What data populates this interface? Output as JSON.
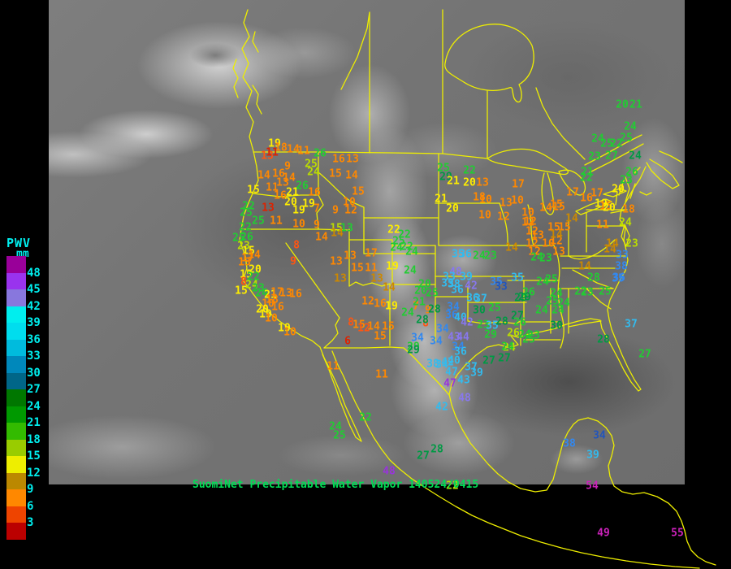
{
  "caption": {
    "text": "SuomiNet Precipitable Water Vapor 140524/0415",
    "color": "#00DD55"
  },
  "legend": {
    "title": "PWV",
    "units": "mm",
    "text_color": "#00EEEE",
    "tick_labels": [
      "48",
      "45",
      "42",
      "39",
      "36",
      "33",
      "30",
      "27",
      "24",
      "21",
      "18",
      "15",
      "12",
      "9",
      "6",
      "3"
    ],
    "block_colors": [
      "#990099",
      "#9933EE",
      "#8877DD",
      "#00EEEE",
      "#00DDEE",
      "#00BBDD",
      "#0088BB",
      "#006688",
      "#007700",
      "#009900",
      "#33BB00",
      "#99CC00",
      "#EEEE00",
      "#BB8800",
      "#FF8800",
      "#EE4400",
      "#BB0000"
    ]
  },
  "map": {
    "outline_color": "#EEEE00",
    "space_color": "#000000"
  },
  "palette": {
    "r": "#DD2200",
    "or": "#FF5511",
    "o": "#FF8800",
    "go": "#CC8800",
    "y": "#FFEE00",
    "yg": "#BBDD00",
    "g": "#22CC33",
    "dg": "#009944",
    "b": "#3388EE",
    "db": "#2255BB",
    "c": "#33BBEE",
    "lv": "#8877EE",
    "pu": "#9933DD",
    "mg": "#CC22BB"
  },
  "stations": [
    [
      "19",
      338,
      177,
      "y"
    ],
    [
      "18",
      346,
      182,
      "o"
    ],
    [
      "14",
      361,
      184,
      "o"
    ],
    [
      "11",
      374,
      186,
      "o"
    ],
    [
      "26",
      394,
      189,
      "g"
    ],
    [
      "16",
      417,
      196,
      "o"
    ],
    [
      "13",
      434,
      196,
      "o"
    ],
    [
      "13",
      329,
      192,
      "or"
    ],
    [
      "11",
      335,
      188,
      "r"
    ],
    [
      "9",
      354,
      205,
      "o"
    ],
    [
      "25",
      383,
      202,
      "yg"
    ],
    [
      "24",
      386,
      212,
      "yg"
    ],
    [
      "15",
      413,
      214,
      "o"
    ],
    [
      "14",
      433,
      216,
      "o"
    ],
    [
      "14",
      325,
      216,
      "o"
    ],
    [
      "16",
      343,
      214,
      "o"
    ],
    [
      "14",
      356,
      219,
      "o"
    ],
    [
      "13",
      348,
      225,
      "o"
    ],
    [
      "11",
      335,
      231,
      "o"
    ],
    [
      "26",
      372,
      229,
      "g"
    ],
    [
      "21",
      360,
      237,
      "y"
    ],
    [
      "16",
      387,
      237,
      "o"
    ],
    [
      "15",
      312,
      234,
      "y"
    ],
    [
      "16",
      345,
      241,
      "o"
    ],
    [
      "15",
      441,
      236,
      "o"
    ],
    [
      "20",
      358,
      249,
      "y"
    ],
    [
      "19",
      380,
      251,
      "y"
    ],
    [
      "19",
      368,
      259,
      "y"
    ],
    [
      "7",
      390,
      257,
      "o"
    ],
    [
      "9",
      413,
      259,
      "o"
    ],
    [
      "10",
      430,
      249,
      "o"
    ],
    [
      "12",
      432,
      259,
      "o"
    ],
    [
      "13",
      330,
      256,
      "r"
    ],
    [
      "22",
      306,
      254,
      "g"
    ],
    [
      "25",
      303,
      262,
      "g"
    ],
    [
      "25",
      318,
      272,
      "g"
    ],
    [
      "22",
      302,
      280,
      "g"
    ],
    [
      "11",
      340,
      272,
      "o"
    ],
    [
      "10",
      368,
      276,
      "o"
    ],
    [
      "9",
      390,
      277,
      "o"
    ],
    [
      "15",
      414,
      281,
      "yg"
    ],
    [
      "13",
      427,
      281,
      "g"
    ],
    [
      "25",
      546,
      207,
      "g"
    ],
    [
      "29",
      549,
      218,
      "dg"
    ],
    [
      "22",
      578,
      210,
      "g"
    ],
    [
      "21",
      558,
      223,
      "y"
    ],
    [
      "20",
      578,
      225,
      "y"
    ],
    [
      "13",
      594,
      225,
      "o"
    ],
    [
      "17",
      638,
      227,
      "o"
    ],
    [
      "21",
      543,
      245,
      "y"
    ],
    [
      "18",
      590,
      243,
      "o"
    ],
    [
      "10",
      598,
      246,
      "o"
    ],
    [
      "13",
      623,
      250,
      "o"
    ],
    [
      "10",
      637,
      247,
      "o"
    ],
    [
      "20",
      557,
      257,
      "y"
    ],
    [
      "10",
      597,
      265,
      "o"
    ],
    [
      "12",
      620,
      267,
      "o"
    ],
    [
      "10",
      650,
      262,
      "o"
    ],
    [
      "14",
      672,
      256,
      "o"
    ],
    [
      "15",
      688,
      255,
      "o"
    ],
    [
      "12",
      653,
      273,
      "o"
    ],
    [
      "12",
      655,
      285,
      "o"
    ],
    [
      "13",
      662,
      290,
      "o"
    ],
    [
      "15",
      682,
      280,
      "o"
    ],
    [
      "15",
      695,
      280,
      "o"
    ],
    [
      "12",
      655,
      300,
      "o"
    ],
    [
      "10",
      675,
      300,
      "o"
    ],
    [
      "12",
      685,
      297,
      "o"
    ],
    [
      "14",
      630,
      305,
      "go"
    ],
    [
      "12",
      658,
      310,
      "o"
    ],
    [
      "13",
      688,
      310,
      "o"
    ],
    [
      "24",
      590,
      315,
      "g"
    ],
    [
      "23",
      604,
      315,
      "g"
    ],
    [
      "25",
      294,
      293,
      "g"
    ],
    [
      "26",
      304,
      292,
      "g"
    ],
    [
      "23",
      300,
      303,
      "yg"
    ],
    [
      "15",
      306,
      309,
      "y"
    ],
    [
      "14",
      313,
      314,
      "o"
    ],
    [
      "17",
      305,
      318,
      "o"
    ],
    [
      "13",
      301,
      323,
      "o"
    ],
    [
      "8",
      365,
      302,
      "or"
    ],
    [
      "9",
      361,
      322,
      "or"
    ],
    [
      "14",
      396,
      292,
      "o"
    ],
    [
      "14",
      415,
      287,
      "go"
    ],
    [
      "20",
      314,
      332,
      "y"
    ],
    [
      "15",
      303,
      338,
      "y"
    ],
    [
      "22",
      312,
      341,
      "g"
    ],
    [
      "8",
      300,
      347,
      "or"
    ],
    [
      "24",
      310,
      351,
      "yg"
    ],
    [
      "23",
      318,
      355,
      "g"
    ],
    [
      "15",
      297,
      358,
      "y"
    ],
    [
      "24",
      322,
      361,
      "g"
    ],
    [
      "21",
      333,
      363,
      "y"
    ],
    [
      "17",
      341,
      360,
      "o"
    ],
    [
      "13",
      352,
      361,
      "o"
    ],
    [
      "16",
      364,
      362,
      "o"
    ],
    [
      "18",
      335,
      369,
      "o"
    ],
    [
      "10",
      330,
      374,
      "o"
    ],
    [
      "20",
      323,
      381,
      "y"
    ],
    [
      "19",
      327,
      387,
      "y"
    ],
    [
      "10",
      334,
      392,
      "o"
    ],
    [
      "16",
      342,
      378,
      "o"
    ],
    [
      "19",
      350,
      404,
      "y"
    ],
    [
      "10",
      357,
      409,
      "o"
    ],
    [
      "13",
      414,
      322,
      "o"
    ],
    [
      "13",
      431,
      315,
      "o"
    ],
    [
      "17",
      457,
      312,
      "o"
    ],
    [
      "15",
      440,
      330,
      "o"
    ],
    [
      "11",
      457,
      330,
      "o"
    ],
    [
      "19",
      483,
      328,
      "y"
    ],
    [
      "13",
      419,
      343,
      "go"
    ],
    [
      "22",
      485,
      283,
      "y"
    ],
    [
      "22",
      498,
      289,
      "g"
    ],
    [
      "25",
      491,
      297,
      "g"
    ],
    [
      "24",
      488,
      305,
      "g"
    ],
    [
      "22",
      501,
      304,
      "g"
    ],
    [
      "24",
      507,
      310,
      "g"
    ],
    [
      "24",
      505,
      333,
      "g"
    ],
    [
      "14",
      479,
      354,
      "go"
    ],
    [
      "12",
      453,
      371,
      "o"
    ],
    [
      "16",
      468,
      374,
      "o"
    ],
    [
      "19",
      482,
      377,
      "y"
    ],
    [
      "14",
      460,
      402,
      "o"
    ],
    [
      "15",
      478,
      402,
      "o"
    ],
    [
      "15",
      468,
      414,
      "o"
    ],
    [
      "8",
      432,
      397,
      "or"
    ],
    [
      "15",
      442,
      400,
      "o"
    ],
    [
      "12",
      448,
      404,
      "or"
    ],
    [
      "6",
      428,
      420,
      "r"
    ],
    [
      "9",
      527,
      382,
      "o"
    ],
    [
      "8",
      524,
      398,
      "or"
    ],
    [
      "7",
      512,
      377,
      "o"
    ],
    [
      "13",
      464,
      343,
      "go"
    ],
    [
      "20",
      523,
      350,
      "g"
    ],
    [
      "20",
      518,
      358,
      "g"
    ],
    [
      "25",
      532,
      361,
      "g"
    ],
    [
      "21",
      516,
      372,
      "g"
    ],
    [
      "24",
      502,
      385,
      "g"
    ],
    [
      "35",
      564,
      313,
      "c"
    ],
    [
      "36",
      573,
      313,
      "c"
    ],
    [
      "48",
      561,
      335,
      "lv"
    ],
    [
      "39",
      574,
      341,
      "c"
    ],
    [
      "33",
      553,
      341,
      "c"
    ],
    [
      "35",
      551,
      349,
      "c"
    ],
    [
      "38",
      559,
      350,
      "c"
    ],
    [
      "42",
      580,
      352,
      "lv"
    ],
    [
      "36",
      563,
      357,
      "c"
    ],
    [
      "35",
      611,
      347,
      "b"
    ],
    [
      "33",
      617,
      353,
      "db"
    ],
    [
      "35",
      637,
      342,
      "c"
    ],
    [
      "36",
      582,
      367,
      "c"
    ],
    [
      "37",
      592,
      368,
      "c"
    ],
    [
      "34",
      558,
      378,
      "b"
    ],
    [
      "36",
      556,
      388,
      "b"
    ],
    [
      "30",
      590,
      382,
      "dg"
    ],
    [
      "25",
      609,
      379,
      "g"
    ],
    [
      "29",
      646,
      366,
      "dg"
    ],
    [
      "23",
      595,
      400,
      "g"
    ],
    [
      "35",
      606,
      401,
      "c"
    ],
    [
      "28",
      618,
      396,
      "dg"
    ],
    [
      "27",
      637,
      389,
      "dg"
    ],
    [
      "26",
      640,
      397,
      "g"
    ],
    [
      "26",
      632,
      410,
      "yg"
    ],
    [
      "29",
      604,
      412,
      "g"
    ],
    [
      "24",
      627,
      428,
      "yg"
    ],
    [
      "40",
      567,
      391,
      "c"
    ],
    [
      "42",
      575,
      397,
      "lv"
    ],
    [
      "43",
      559,
      415,
      "lv"
    ],
    [
      "44",
      570,
      415,
      "lv"
    ],
    [
      "34",
      514,
      416,
      "b"
    ],
    [
      "34",
      537,
      420,
      "b"
    ],
    [
      "29",
      509,
      427,
      "g"
    ],
    [
      "34",
      564,
      427,
      "b"
    ],
    [
      "36",
      567,
      433,
      "c"
    ],
    [
      "34",
      545,
      405,
      "b"
    ],
    [
      "28",
      535,
      381,
      "dg"
    ],
    [
      "28",
      520,
      394,
      "dg"
    ],
    [
      "38",
      533,
      448,
      "c"
    ],
    [
      "34",
      544,
      449,
      "c"
    ],
    [
      "42",
      551,
      446,
      "c"
    ],
    [
      "40",
      559,
      444,
      "c"
    ],
    [
      "47",
      556,
      458,
      "c"
    ],
    [
      "47",
      554,
      472,
      "pu"
    ],
    [
      "37",
      580,
      452,
      "c"
    ],
    [
      "39",
      587,
      459,
      "c"
    ],
    [
      "43",
      571,
      468,
      "c"
    ],
    [
      "27",
      621,
      441,
      "dg"
    ],
    [
      "48",
      572,
      490,
      "lv"
    ],
    [
      "42",
      544,
      501,
      "c"
    ],
    [
      "17",
      705,
      237,
      "o"
    ],
    [
      "17",
      735,
      238,
      "o"
    ],
    [
      "16",
      722,
      244,
      "o"
    ],
    [
      "20",
      761,
      233,
      "y"
    ],
    [
      "15",
      685,
      252,
      "o"
    ],
    [
      "19",
      740,
      251,
      "y"
    ],
    [
      "15",
      746,
      254,
      "o"
    ],
    [
      "20",
      750,
      256,
      "y"
    ],
    [
      "18",
      774,
      258,
      "o"
    ],
    [
      "14",
      704,
      269,
      "go"
    ],
    [
      "11",
      742,
      277,
      "o"
    ],
    [
      "24",
      770,
      274,
      "yg"
    ],
    [
      "12",
      650,
      274,
      "o"
    ],
    [
      "14",
      685,
      289,
      "go"
    ],
    [
      "24",
      661,
      317,
      "g"
    ],
    [
      "23",
      672,
      318,
      "g"
    ],
    [
      "14",
      754,
      300,
      "go"
    ],
    [
      "14",
      751,
      307,
      "go"
    ],
    [
      "23",
      778,
      300,
      "yg"
    ],
    [
      "33",
      766,
      314,
      "b"
    ],
    [
      "38",
      765,
      328,
      "b"
    ],
    [
      "35",
      761,
      343,
      "b"
    ],
    [
      "14",
      720,
      328,
      "go"
    ],
    [
      "28",
      731,
      342,
      "g"
    ],
    [
      "20",
      766,
      129,
      "g"
    ],
    [
      "21",
      783,
      129,
      "g"
    ],
    [
      "24",
      776,
      156,
      "g"
    ],
    [
      "25",
      771,
      170,
      "g"
    ],
    [
      "24",
      736,
      171,
      "g"
    ],
    [
      "25",
      747,
      177,
      "g"
    ],
    [
      "22",
      759,
      177,
      "g"
    ],
    [
      "23",
      732,
      193,
      "g"
    ],
    [
      "27",
      753,
      192,
      "g"
    ],
    [
      "24",
      782,
      192,
      "dg"
    ],
    [
      "21",
      723,
      212,
      "g"
    ],
    [
      "22",
      722,
      219,
      "g"
    ],
    [
      "26",
      778,
      212,
      "g"
    ],
    [
      "23",
      771,
      222,
      "g"
    ],
    [
      "24",
      668,
      347,
      "g"
    ],
    [
      "25",
      679,
      344,
      "g"
    ],
    [
      "26",
      651,
      360,
      "g"
    ],
    [
      "29",
      641,
      367,
      "dg"
    ],
    [
      "24",
      685,
      361,
      "g"
    ],
    [
      "25",
      680,
      371,
      "g"
    ],
    [
      "24",
      694,
      373,
      "g"
    ],
    [
      "22",
      715,
      359,
      "g"
    ],
    [
      "23",
      723,
      360,
      "g"
    ],
    [
      "25",
      745,
      359,
      "g"
    ],
    [
      "36",
      762,
      342,
      "b"
    ],
    [
      "24",
      667,
      382,
      "g"
    ],
    [
      "24",
      687,
      382,
      "g"
    ],
    [
      "24",
      646,
      412,
      "g"
    ],
    [
      "23",
      657,
      413,
      "g"
    ],
    [
      "25",
      651,
      418,
      "g"
    ],
    [
      "30",
      685,
      401,
      "dg"
    ],
    [
      "24",
      625,
      427,
      "g"
    ],
    [
      "28",
      743,
      418,
      "dg"
    ],
    [
      "37",
      777,
      399,
      "c"
    ],
    [
      "27",
      794,
      436,
      "g"
    ],
    [
      "11",
      410,
      451,
      "o"
    ],
    [
      "11",
      470,
      461,
      "o"
    ],
    [
      "29",
      509,
      431,
      "dg"
    ],
    [
      "27",
      602,
      444,
      "dg"
    ],
    [
      "22",
      450,
      514,
      "g"
    ],
    [
      "24",
      413,
      525,
      "g"
    ],
    [
      "25",
      418,
      536,
      "g"
    ],
    [
      "27",
      521,
      561,
      "dg"
    ],
    [
      "28",
      538,
      553,
      "dg"
    ],
    [
      "48",
      479,
      580,
      "pu"
    ],
    [
      "38",
      701,
      546,
      "b"
    ],
    [
      "34",
      738,
      536,
      "db"
    ],
    [
      "39",
      730,
      560,
      "c"
    ],
    [
      "54",
      729,
      598,
      "mg"
    ],
    [
      "49",
      743,
      656,
      "mg"
    ],
    [
      "55",
      834,
      656,
      "mg"
    ],
    [
      "22",
      557,
      598,
      "yg"
    ]
  ]
}
